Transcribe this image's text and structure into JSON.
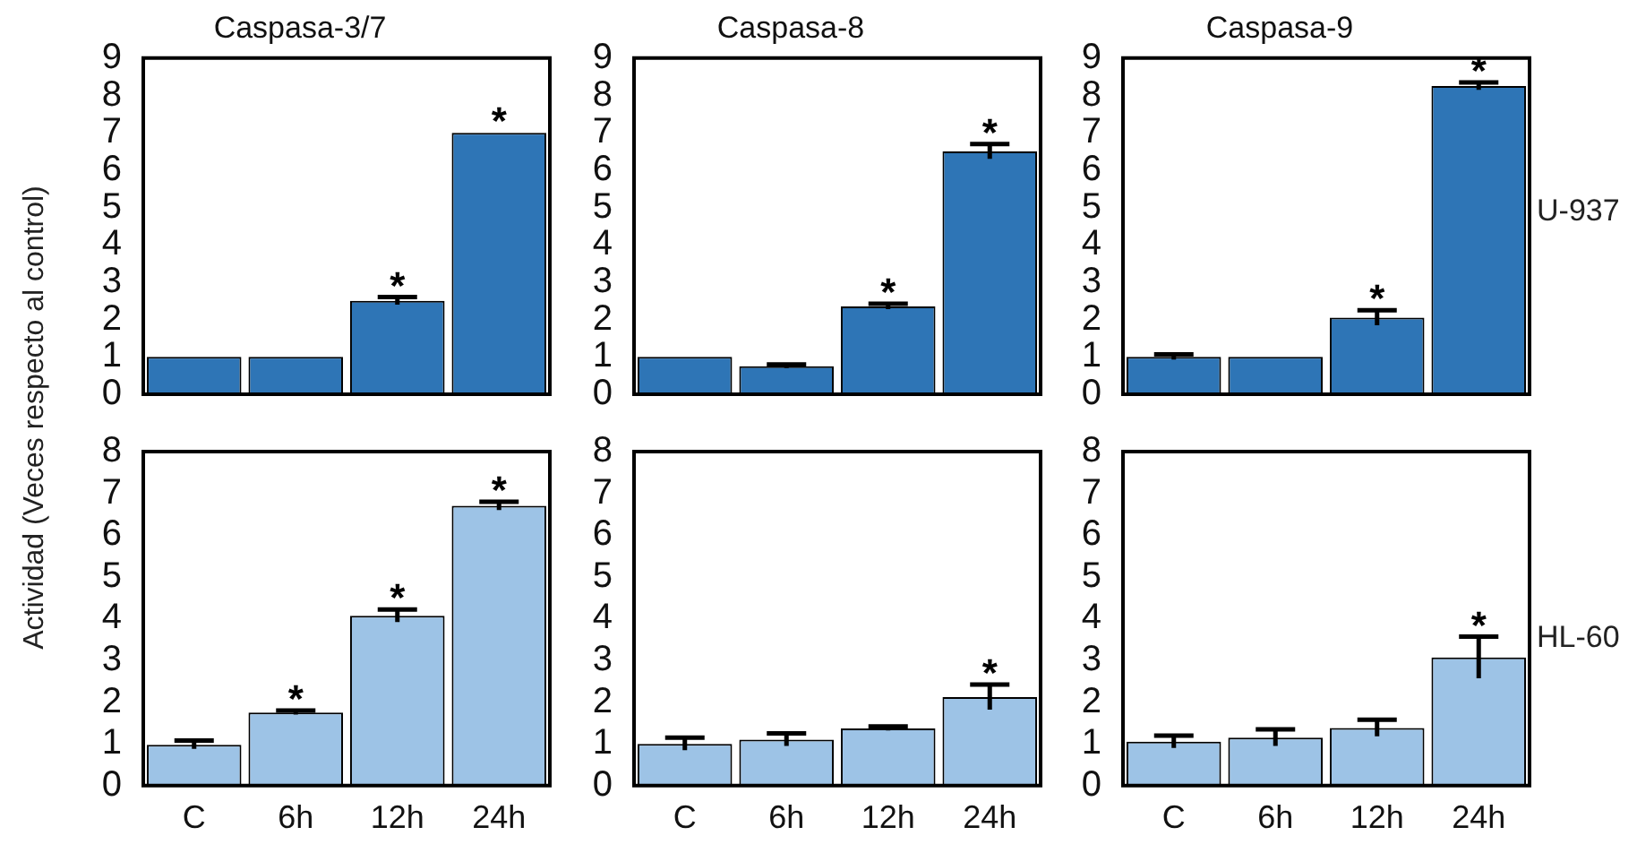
{
  "chart_data": [
    {
      "type": "bar",
      "title": "Caspasa-3/7",
      "ylabel": "Actividad (Veces respecto al control)",
      "categories": [
        "C",
        "6h",
        "12h",
        "24h"
      ],
      "values": [
        1,
        1,
        2.5,
        7.0
      ],
      "errors": [
        null,
        null,
        0.1,
        null
      ],
      "color": "#2e75b6",
      "ylim": [
        0,
        9
      ],
      "yticks": [
        0,
        1,
        2,
        3,
        4,
        5,
        6,
        7,
        8,
        9
      ],
      "tick_labels": "y",
      "annotations": [
        {
          "text": "*",
          "x": "12h",
          "y": 2.6
        },
        {
          "text": "*",
          "x": "24h",
          "y": 7.0
        }
      ]
    },
    {
      "type": "bar",
      "title": "Caspasa-8",
      "categories": [
        "C",
        "6h",
        "12h",
        "24h"
      ],
      "values": [
        1,
        0.75,
        2.35,
        6.5
      ],
      "errors": [
        null,
        0.05,
        0.07,
        0.2
      ],
      "color": "#2e75b6",
      "ylim": [
        0,
        9
      ],
      "yticks": [
        0,
        1,
        2,
        3,
        4,
        5,
        6,
        7,
        8,
        9
      ],
      "tick_labels": "y",
      "annotations": [
        {
          "text": "*",
          "x": "12h",
          "y": 2.42
        },
        {
          "text": "*",
          "x": "24h",
          "y": 6.7
        }
      ]
    },
    {
      "type": "bar",
      "title": "Caspasa-9",
      "categories": [
        "C",
        "6h",
        "12h",
        "24h"
      ],
      "values": [
        1,
        1,
        2.05,
        8.25
      ],
      "errors": [
        0.07,
        null,
        0.2,
        0.1
      ],
      "color": "#2e75b6",
      "ylim": [
        0,
        9
      ],
      "yticks": [
        0,
        1,
        2,
        3,
        4,
        5,
        6,
        7,
        8,
        9
      ],
      "tick_labels": "y",
      "annotations": [
        "U-937",
        {
          "text": "*",
          "x": "12h",
          "y": 2.25
        },
        {
          "text": "*",
          "x": "24h",
          "y": 8.35
        }
      ]
    },
    {
      "type": "bar",
      "categories": [
        "C",
        "6h",
        "12h",
        "24h"
      ],
      "values": [
        0.98,
        1.75,
        4.07,
        6.7
      ],
      "errors": [
        0.1,
        0.05,
        0.15,
        0.1
      ],
      "color": "#9dc3e6",
      "ylim": [
        0,
        8
      ],
      "yticks": [
        0,
        1,
        2,
        3,
        4,
        5,
        6,
        7,
        8
      ],
      "annotations": [
        {
          "text": "*",
          "x": "6h",
          "y": 1.8
        },
        {
          "text": "*",
          "x": "12h",
          "y": 4.22
        },
        {
          "text": "*",
          "x": "24h",
          "y": 6.8
        }
      ]
    },
    {
      "type": "bar",
      "categories": [
        "C",
        "6h",
        "12h",
        "24h"
      ],
      "values": [
        1.0,
        1.1,
        1.37,
        2.12
      ],
      "errors": [
        0.15,
        0.15,
        0.05,
        0.3
      ],
      "color": "#9dc3e6",
      "ylim": [
        0,
        8
      ],
      "yticks": [
        0,
        1,
        2,
        3,
        4,
        5,
        6,
        7,
        8
      ],
      "annotations": [
        {
          "text": "*",
          "x": "24h",
          "y": 2.42
        }
      ]
    },
    {
      "type": "bar",
      "categories": [
        "C",
        "6h",
        "12h",
        "24h"
      ],
      "values": [
        1.05,
        1.15,
        1.38,
        3.07
      ],
      "errors": [
        0.15,
        0.2,
        0.2,
        0.5
      ],
      "color": "#9dc3e6",
      "ylim": [
        0,
        8
      ],
      "yticks": [
        0,
        1,
        2,
        3,
        4,
        5,
        6,
        7,
        8
      ],
      "annotations": [
        "HL-60",
        {
          "text": "*",
          "x": "24h",
          "y": 3.57
        }
      ]
    }
  ]
}
